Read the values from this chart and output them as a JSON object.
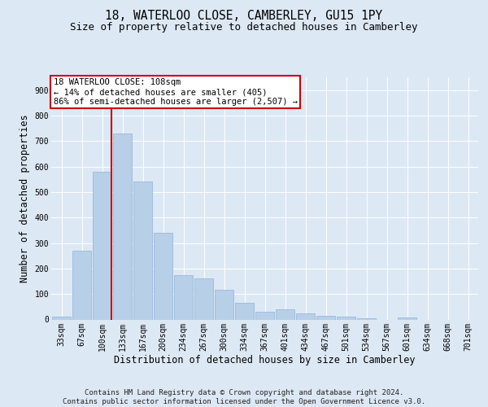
{
  "title": "18, WATERLOO CLOSE, CAMBERLEY, GU15 1PY",
  "subtitle": "Size of property relative to detached houses in Camberley",
  "xlabel": "Distribution of detached houses by size in Camberley",
  "ylabel": "Number of detached properties",
  "categories": [
    "33sqm",
    "67sqm",
    "100sqm",
    "133sqm",
    "167sqm",
    "200sqm",
    "234sqm",
    "267sqm",
    "300sqm",
    "334sqm",
    "367sqm",
    "401sqm",
    "434sqm",
    "467sqm",
    "501sqm",
    "534sqm",
    "567sqm",
    "601sqm",
    "634sqm",
    "668sqm",
    "701sqm"
  ],
  "values": [
    10,
    270,
    580,
    730,
    540,
    340,
    175,
    160,
    115,
    65,
    30,
    40,
    25,
    15,
    10,
    5,
    0,
    8,
    0,
    0,
    0
  ],
  "bar_color": "#b8cfe8",
  "bar_edge_color": "#8fb4d9",
  "background_color": "#dde8f5",
  "plot_bg_color": "#dde8f5",
  "grid_color": "#ffffff",
  "vline_color": "#cc0000",
  "vline_x_index": 2,
  "annotation_text": "18 WATERLOO CLOSE: 108sqm\n← 14% of detached houses are smaller (405)\n86% of semi-detached houses are larger (2,507) →",
  "annotation_box_facecolor": "#ffffff",
  "annotation_box_edgecolor": "#cc0000",
  "ylim": [
    0,
    950
  ],
  "yticks": [
    0,
    100,
    200,
    300,
    400,
    500,
    600,
    700,
    800,
    900
  ],
  "footer": "Contains HM Land Registry data © Crown copyright and database right 2024.\nContains public sector information licensed under the Open Government Licence v3.0.",
  "title_fontsize": 10.5,
  "subtitle_fontsize": 9,
  "xlabel_fontsize": 8.5,
  "ylabel_fontsize": 8.5,
  "tick_fontsize": 7,
  "annotation_fontsize": 7.5,
  "footer_fontsize": 6.5
}
